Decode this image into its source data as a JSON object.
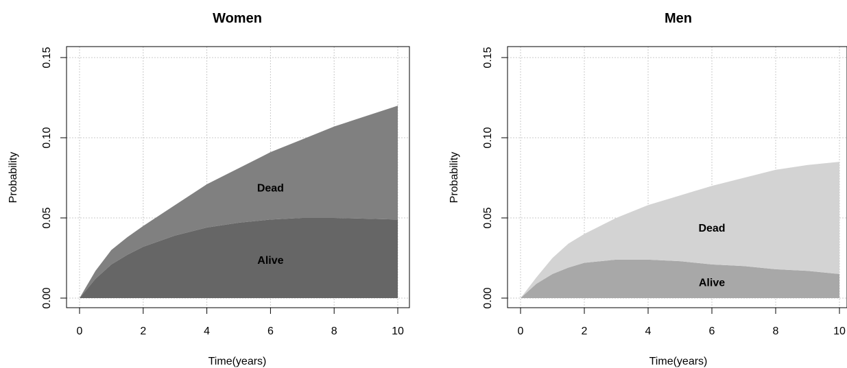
{
  "chart_data": [
    {
      "type": "area",
      "stacked": true,
      "title": "Women",
      "xlabel": "Time(years)",
      "ylabel": "Probability",
      "xlim": [
        0,
        10
      ],
      "ylim": [
        0,
        0.15
      ],
      "xticks": [
        0,
        2,
        4,
        6,
        8,
        10
      ],
      "yticks": [
        0.0,
        0.05,
        0.1,
        0.15
      ],
      "ytick_labels": [
        "0.00",
        "0.05",
        "0.10",
        "0.15"
      ],
      "grid": true,
      "x": [
        0,
        0.5,
        1,
        1.5,
        2,
        3,
        4,
        5,
        6,
        7,
        8,
        9,
        10
      ],
      "series": [
        {
          "name": "Alive",
          "label": "Alive",
          "color": "#666666",
          "label_at": [
            6,
            0.024
          ],
          "values": [
            0,
            0.012,
            0.021,
            0.027,
            0.032,
            0.039,
            0.044,
            0.047,
            0.049,
            0.05,
            0.05,
            0.0495,
            0.049
          ]
        },
        {
          "name": "Dead",
          "label": "Dead",
          "color": "#808080",
          "label_at": [
            6,
            0.069
          ],
          "values": [
            0,
            0.005,
            0.009,
            0.011,
            0.013,
            0.019,
            0.027,
            0.034,
            0.042,
            0.049,
            0.057,
            0.064,
            0.071
          ]
        }
      ]
    },
    {
      "type": "area",
      "stacked": true,
      "title": "Men",
      "xlabel": "Time(years)",
      "ylabel": "Probability",
      "xlim": [
        0,
        10
      ],
      "ylim": [
        0,
        0.15
      ],
      "xticks": [
        0,
        2,
        4,
        6,
        8,
        10
      ],
      "yticks": [
        0.0,
        0.05,
        0.1,
        0.15
      ],
      "ytick_labels": [
        "0.00",
        "0.05",
        "0.10",
        "0.15"
      ],
      "grid": true,
      "x": [
        0,
        0.5,
        1,
        1.5,
        2,
        3,
        4,
        5,
        6,
        7,
        8,
        9,
        10
      ],
      "series": [
        {
          "name": "Alive",
          "label": "Alive",
          "color": "#a8a8a8",
          "label_at": [
            6,
            0.01
          ],
          "values": [
            0,
            0.009,
            0.015,
            0.019,
            0.022,
            0.024,
            0.024,
            0.023,
            0.021,
            0.02,
            0.018,
            0.017,
            0.015
          ]
        },
        {
          "name": "Dead",
          "label": "Dead",
          "color": "#d3d3d3",
          "label_at": [
            6,
            0.044
          ],
          "values": [
            0,
            0.004,
            0.01,
            0.015,
            0.018,
            0.026,
            0.034,
            0.041,
            0.049,
            0.055,
            0.062,
            0.066,
            0.07
          ]
        }
      ]
    }
  ]
}
